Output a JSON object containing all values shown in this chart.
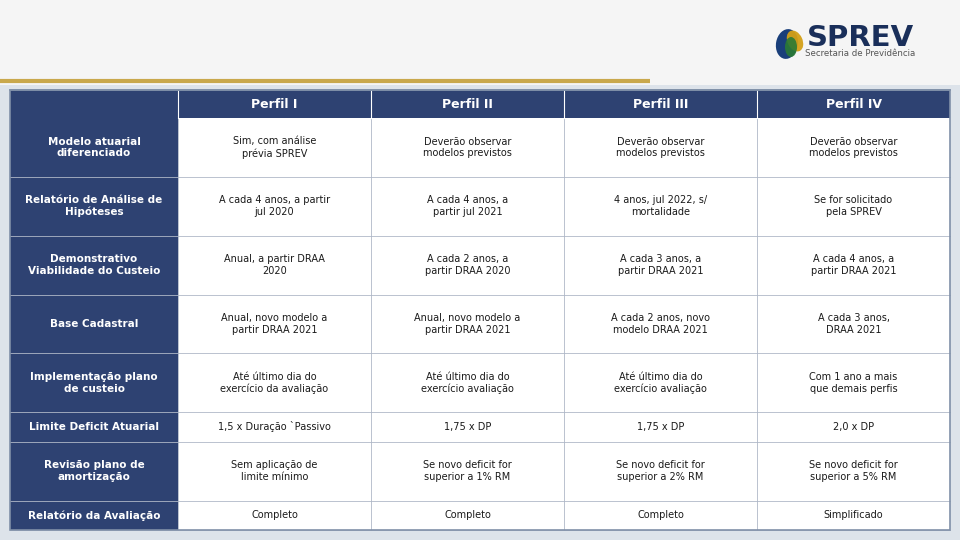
{
  "header_bg": "#2e4272",
  "row_bg_dark": "#2e4272",
  "row_bg_light": "#ffffff",
  "border_color": "#cccccc",
  "gold_line_color": "#c9a84c",
  "page_bg": "#dde3ea",
  "col_headers": [
    "",
    "Perfil I",
    "Perfil II",
    "Perfil III",
    "Perfil IV"
  ],
  "rows": [
    {
      "label": "Modelo atuarial\ndiferenciado",
      "cells": [
        "Sim, com análise\nprévia SPREV",
        "Deverão observar\nmodelos previstos",
        "Deverão observar\nmodelos previstos",
        "Deverão observar\nmodelos previstos"
      ]
    },
    {
      "label": "Relatório de Análise de\nHipóteses",
      "cells": [
        "A cada 4 anos, a partir\njul 2020",
        "A cada 4 anos, a\npartir jul 2021",
        "4 anos, jul 2022, s/\nmortalidade",
        "Se for solicitado\npela SPREV"
      ]
    },
    {
      "label": "Demonstrativo\nViabilidade do Custeio",
      "cells": [
        "Anual, a partir DRAA\n2020",
        "A cada 2 anos, a\npartir DRAA 2020",
        "A cada 3 anos, a\npartir DRAA 2021",
        "A cada 4 anos, a\npartir DRAA 2021"
      ]
    },
    {
      "label": "Base Cadastral",
      "cells": [
        "Anual, novo modelo a\npartir DRAA 2021",
        "Anual, novo modelo a\npartir DRAA 2021",
        "A cada 2 anos, novo\nmodelo DRAA 2021",
        "A cada 3 anos,\nDRAA 2021"
      ]
    },
    {
      "label": "Implementação plano\nde custeio",
      "cells": [
        "Até último dia do\nexercício da avaliação",
        "Até último dia do\nexercício avaliação",
        "Até último dia do\nexercício avaliação",
        "Com 1 ano a mais\nque demais perfis"
      ]
    },
    {
      "label": "Limite Deficit Atuarial",
      "cells": [
        "1,5 x Duração `Passivo",
        "1,75 x DP",
        "1,75 x DP",
        "2,0 x DP"
      ]
    },
    {
      "label": "Revisão plano de\namortização",
      "cells": [
        "Sem aplicação de\nlimite mínimo",
        "Se novo deficit for\nsuperior a 1% RM",
        "Se novo deficit for\nsuperior a 2% RM",
        "Se novo deficit for\nsuperior a 5% RM"
      ]
    },
    {
      "label": "Relatório da Avaliação",
      "cells": [
        "Completo",
        "Completo",
        "Completo",
        "Simplificado"
      ]
    }
  ],
  "row_heights_raw": [
    2,
    2,
    2,
    2,
    2,
    1,
    2,
    1
  ]
}
